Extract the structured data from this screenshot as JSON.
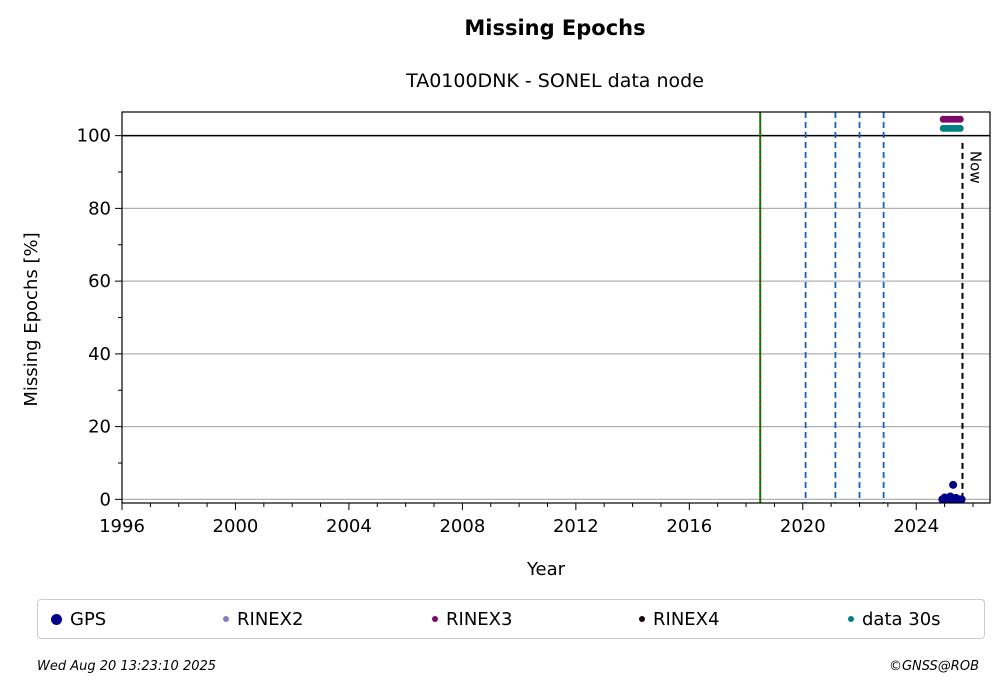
{
  "chart_data": {
    "type": "scatter",
    "title": "Missing Epochs",
    "subtitle": "TA0100DNK - SONEL data node",
    "xlabel": "Year",
    "ylabel": "Missing Epochs [%]",
    "xlim": [
      1996,
      2026.6
    ],
    "ylim": [
      -1,
      106.5
    ],
    "xticks": [
      1996,
      2000,
      2004,
      2008,
      2012,
      2016,
      2020,
      2024
    ],
    "yticks": [
      0,
      20,
      40,
      60,
      80,
      100
    ],
    "grid": "horizontal",
    "reference_line_y": 100,
    "now_x": 2025.63,
    "now_label": "Now",
    "vlines_green": [
      2018.5
    ],
    "vlines_blue_dashed": [
      2020.1,
      2021.15,
      2022.0,
      2022.85
    ],
    "legend_position": "bottom",
    "series": [
      {
        "name": "GPS",
        "color": "#00008b",
        "x": [
          2024.92,
          2025.0,
          2025.08,
          2025.16,
          2025.22,
          2025.3,
          2025.38,
          2025.46,
          2025.54,
          2025.6,
          2025.0,
          2025.2,
          2025.4,
          2025.3
        ],
        "y": [
          0,
          0,
          0,
          0,
          0,
          0,
          0,
          0,
          0,
          0,
          0.5,
          0.8,
          0.4,
          4
        ]
      },
      {
        "name": "RINEX2",
        "color": "#8080c0",
        "x": [],
        "y": []
      },
      {
        "name": "RINEX3",
        "color": "#7b0a6b",
        "x": [
          2024.95,
          2025.05,
          2025.15,
          2025.25,
          2025.35,
          2025.45,
          2025.55
        ],
        "y": [
          104.5,
          104.5,
          104.5,
          104.5,
          104.5,
          104.5,
          104.5
        ]
      },
      {
        "name": "RINEX4",
        "color": "#1a0010",
        "x": [],
        "y": []
      },
      {
        "name": "data 30s",
        "color": "#008080",
        "x": [
          2024.95,
          2025.05,
          2025.15,
          2025.25,
          2025.35,
          2025.45,
          2025.55
        ],
        "y": [
          102,
          102,
          102,
          102,
          102,
          102,
          102
        ]
      }
    ]
  },
  "footer": {
    "timestamp": "Wed Aug 20 13:23:10 2025",
    "credit": "©GNSS@ROB"
  }
}
